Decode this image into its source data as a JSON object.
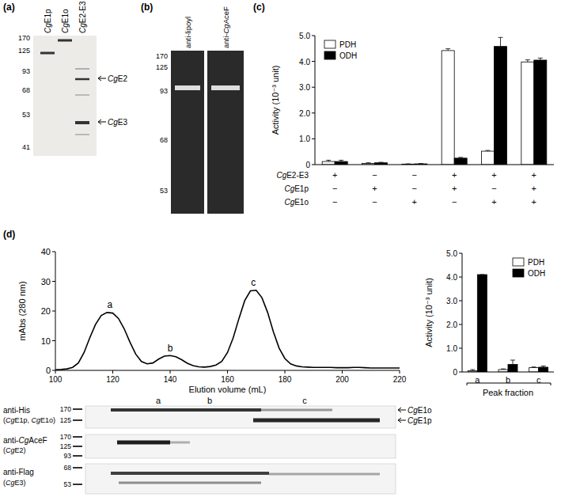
{
  "panels": {
    "a": "(a)",
    "b": "(b)",
    "c": "(c)",
    "d": "(d)"
  },
  "gel_a": {
    "lanes": [
      "CgE1p",
      "CgE1o",
      "CgE2-E3"
    ],
    "markers": [
      170,
      125,
      93,
      68,
      53,
      41
    ],
    "bands": [
      "CgE2",
      "CgE3"
    ]
  },
  "blot_b": {
    "lanes": [
      "anti-lipoyl",
      "anti-CgAceF"
    ],
    "markers": [
      170,
      125,
      93,
      68,
      53
    ]
  },
  "chart_data": [
    {
      "type": "bar",
      "ylabel": "Activity (10⁻³ unit)",
      "categories": [
        null,
        null,
        null,
        null,
        null,
        null
      ],
      "series": [
        {
          "name": "PDH",
          "color": "#ffffff",
          "values": [
            0.12,
            0.05,
            0.02,
            4.42,
            0.52,
            3.98
          ],
          "errors": [
            0.05,
            0.02,
            0.01,
            0.07,
            0.03,
            0.08
          ]
        },
        {
          "name": "ODH",
          "color": "#000000",
          "values": [
            0.12,
            0.07,
            0.03,
            0.25,
            4.58,
            4.05
          ],
          "errors": [
            0.05,
            0.02,
            0.01,
            0.03,
            0.35,
            0.08
          ]
        }
      ],
      "ylim": [
        0,
        5
      ],
      "yticks": [
        0,
        {
          "value": 1,
          "label": "1.0"
        },
        {
          "value": 2,
          "label": "2.0"
        },
        {
          "value": 3,
          "label": "3.0"
        },
        {
          "value": 4,
          "label": "4.0"
        },
        {
          "value": 5,
          "label": "5.0"
        }
      ],
      "legend": "upper left",
      "conditions": [
        {
          "label": "CgE2-E3",
          "marks": [
            "+",
            "−",
            "−",
            "+",
            "+",
            "+"
          ]
        },
        {
          "label": "CgE1p",
          "marks": [
            "−",
            "+",
            "−",
            "+",
            "−",
            "+"
          ]
        },
        {
          "label": "CgE1o",
          "marks": [
            "−",
            "−",
            "+",
            "−",
            "+",
            "+"
          ]
        }
      ]
    },
    {
      "type": "line",
      "ylabel": "mAbs (280 nm)",
      "xlabel": "Elution volume (mL)",
      "x": [
        100,
        102,
        104,
        106,
        108,
        110,
        112,
        114,
        116,
        118,
        120,
        122,
        124,
        126,
        128,
        130,
        132,
        134,
        136,
        138,
        140,
        142,
        144,
        146,
        148,
        150,
        152,
        154,
        156,
        158,
        160,
        162,
        164,
        166,
        168,
        170,
        172,
        174,
        176,
        178,
        180,
        182,
        184,
        186,
        188,
        190,
        192,
        194,
        196,
        198,
        200,
        202,
        204,
        206,
        208,
        210,
        212,
        214,
        216,
        218,
        220
      ],
      "series": [
        {
          "color": "#000000",
          "values": [
            0.2,
            0.3,
            0.5,
            1,
            2.5,
            6,
            11,
            15.5,
            18.5,
            19.5,
            19.3,
            17.5,
            14,
            9.5,
            5.5,
            3,
            2.2,
            2.5,
            3.8,
            4.8,
            5,
            4.6,
            3.6,
            2.4,
            1.6,
            1.2,
            1.1,
            1.3,
            1.8,
            3,
            6,
            11,
            17.5,
            23.5,
            26.8,
            27,
            24.5,
            19.5,
            13,
            7.5,
            4,
            2.2,
            1.5,
            1.2,
            1.1,
            1,
            1,
            1,
            1,
            0.9,
            0.9,
            0.9,
            1,
            1,
            0.9,
            0.8,
            0.8,
            0.8,
            0.8,
            0.8,
            0.8
          ]
        }
      ],
      "xlim": [
        100,
        220
      ],
      "xticks": [
        100,
        120,
        140,
        160,
        180,
        200,
        220
      ],
      "ylim": [
        0,
        40
      ],
      "yticks": [
        0,
        10,
        20,
        30,
        40
      ],
      "annotations": [
        {
          "text": "a",
          "x": 119,
          "y": 21
        },
        {
          "text": "b",
          "x": 140,
          "y": 6.5
        },
        {
          "text": "c",
          "x": 169,
          "y": 28.5
        }
      ]
    },
    {
      "type": "bar",
      "ylabel": "Activity (10⁻³ unit)",
      "xlabel": "Peak fraction",
      "categories": [
        "a",
        "b",
        "c"
      ],
      "series": [
        {
          "name": "PDH",
          "color": "#ffffff",
          "values": [
            0.05,
            0.1,
            0.18
          ],
          "errors": [
            0.05,
            0.03,
            0.03
          ]
        },
        {
          "name": "ODH",
          "color": "#000000",
          "values": [
            4.1,
            0.32,
            0.2
          ],
          "errors": [
            0,
            0.18,
            0.05
          ]
        }
      ],
      "ylim": [
        0,
        5
      ],
      "yticks": [
        0,
        {
          "value": 1,
          "label": "1.0"
        },
        {
          "value": 2,
          "label": "2.0"
        },
        {
          "value": 3,
          "label": "3.0"
        },
        {
          "value": 4,
          "label": "4.0"
        },
        {
          "value": 5,
          "label": "5.0"
        }
      ],
      "legend": "upper right"
    }
  ],
  "blots_d": {
    "peaks": [
      "a",
      "b",
      "c"
    ],
    "rows": [
      {
        "label": "anti-His",
        "sub": "(CgE1p, CgE1o)",
        "markers": [
          170,
          125
        ]
      },
      {
        "label": "anti-CgAceF",
        "sub": "(CgE2)",
        "markers": [
          170,
          125,
          93
        ]
      },
      {
        "label": "anti-Flag",
        "sub": "(CgE3)",
        "markers": [
          68,
          53
        ]
      }
    ],
    "bands": [
      "CgE1o",
      "CgE1p"
    ]
  }
}
